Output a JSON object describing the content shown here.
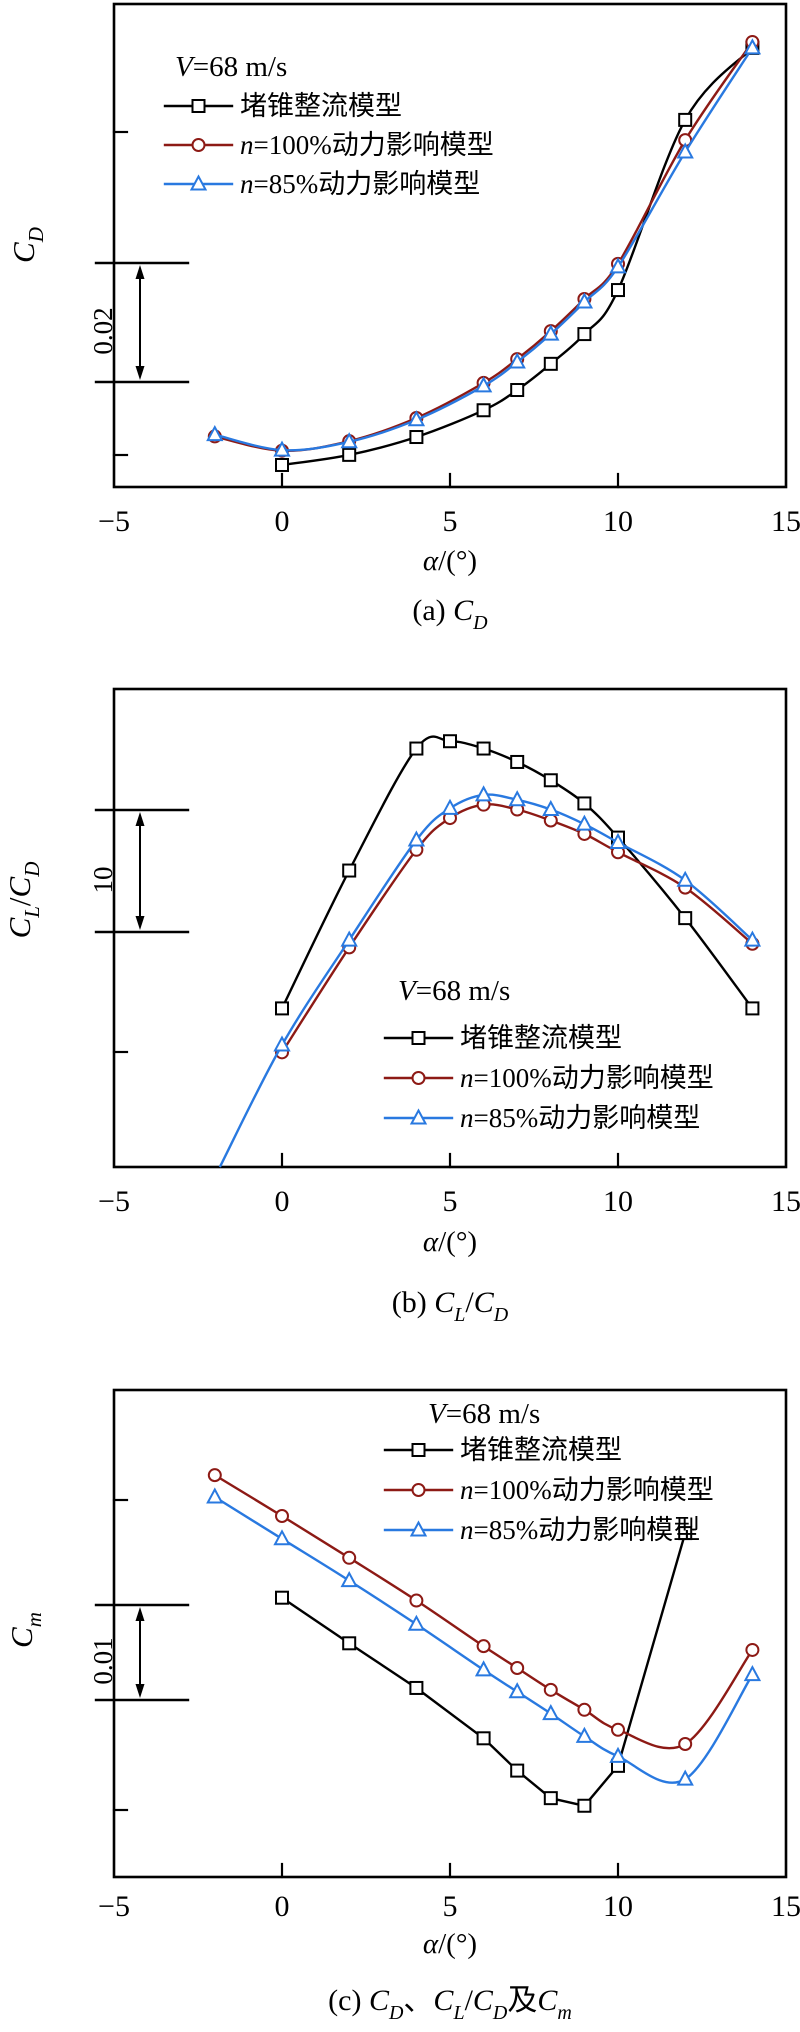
{
  "figure": {
    "background": "#ffffff",
    "colors": {
      "black": "#000000",
      "dark_red": "#8d1a15",
      "blue": "#2979e0"
    },
    "velocity_label": "V=68 m/s",
    "series_names": [
      "堵锥整流模型",
      "n=100%动力影响模型",
      "n=85%动力影响模型"
    ]
  },
  "chart_data": [
    {
      "id": "a",
      "type": "line",
      "caption": "(a) C_D",
      "caption_runs": [
        {
          "t": "(a) "
        },
        {
          "t": "C",
          "i": 1
        },
        {
          "t": "D",
          "i": 1,
          "sub": 1
        }
      ],
      "xlabel": "α/(°)",
      "xlabel_runs": [
        {
          "t": "α",
          "i": 1
        },
        {
          "t": "/(°)"
        }
      ],
      "ylabel": "C_D",
      "ylabel_runs": [
        {
          "t": "C",
          "i": 1
        },
        {
          "t": "D",
          "i": 1,
          "sub": 1
        }
      ],
      "x_range": [
        -5,
        15
      ],
      "x_ticks": [
        0,
        5,
        10
      ],
      "x_tick_labels": [
        "−5",
        "0",
        "5",
        "10",
        "15"
      ],
      "x_tick_label_values": [
        -5,
        0,
        5,
        10,
        15
      ],
      "y_axis_note": "no numeric y labels; scale bar shows 0.02 per division (relative C_D)",
      "scale_bar_label": "0.02",
      "scale_bar_value": 0.02,
      "legend_title": "V=68 m/s",
      "legend_title_runs": [
        {
          "t": "V",
          "i": 1
        },
        {
          "t": "=68 m/s"
        }
      ],
      "series": [
        {
          "name": "堵锥整流模型",
          "label_runs": [
            {
              "t": "堵锥整流模型"
            }
          ],
          "color_key": "black",
          "marker": "square",
          "straight": false,
          "alpha": [
            0,
            2,
            4,
            6,
            7,
            8,
            9,
            10,
            12,
            14
          ],
          "value": [
            0.0037,
            0.0054,
            0.0084,
            0.0129,
            0.0163,
            0.0207,
            0.0257,
            0.0331,
            0.0617,
            0.0738
          ]
        },
        {
          "name": "n=100%动力影响模型",
          "label_runs": [
            {
              "t": "n",
              "i": 1
            },
            {
              "t": "=100%动力影响模型"
            }
          ],
          "color_key": "dark_red",
          "marker": "circle",
          "straight": false,
          "alpha": [
            -2,
            0,
            2,
            4,
            6,
            7,
            8,
            9,
            10,
            12,
            14
          ],
          "value": [
            0.0085,
            0.0061,
            0.0077,
            0.0116,
            0.0175,
            0.0215,
            0.0262,
            0.0316,
            0.0375,
            0.0583,
            0.0748
          ]
        },
        {
          "name": "n=85%动力影响模型",
          "label_runs": [
            {
              "t": "n",
              "i": 1
            },
            {
              "t": "=85%动力影响模型"
            }
          ],
          "color_key": "blue",
          "marker": "triangle",
          "straight": false,
          "alpha": [
            -2,
            0,
            2,
            4,
            6,
            7,
            8,
            9,
            10,
            12,
            14
          ],
          "value": [
            0.0088,
            0.0062,
            0.0076,
            0.0113,
            0.017,
            0.021,
            0.0257,
            0.0311,
            0.037,
            0.0563,
            0.0738
          ]
        }
      ]
    },
    {
      "id": "b",
      "type": "line",
      "caption": "(b) C_L/C_D",
      "caption_runs": [
        {
          "t": "(b) "
        },
        {
          "t": "C",
          "i": 1
        },
        {
          "t": "L",
          "i": 1,
          "sub": 1
        },
        {
          "t": "/"
        },
        {
          "t": "C",
          "i": 1
        },
        {
          "t": "D",
          "i": 1,
          "sub": 1
        }
      ],
      "xlabel": "α/(°)",
      "xlabel_runs": [
        {
          "t": "α",
          "i": 1
        },
        {
          "t": "/(°)"
        }
      ],
      "ylabel": "C_L/C_D",
      "ylabel_runs": [
        {
          "t": "C",
          "i": 1
        },
        {
          "t": "L",
          "i": 1,
          "sub": 1
        },
        {
          "t": "/"
        },
        {
          "t": "C",
          "i": 1
        },
        {
          "t": "D",
          "i": 1,
          "sub": 1
        }
      ],
      "x_range": [
        -5,
        15
      ],
      "x_ticks": [
        0,
        5,
        10
      ],
      "x_tick_labels": [
        "−5",
        "0",
        "5",
        "10",
        "15"
      ],
      "x_tick_label_values": [
        -5,
        0,
        5,
        10,
        15
      ],
      "y_axis_note": "no numeric y labels; scale bar shows 10 per division (relative C_L/C_D)",
      "scale_bar_label": "10",
      "scale_bar_value": 10,
      "legend_title": "V=68 m/s",
      "legend_title_runs": [
        {
          "t": "V",
          "i": 1
        },
        {
          "t": "=68 m/s"
        }
      ],
      "series": [
        {
          "name": "堵锥整流模型",
          "label_runs": [
            {
              "t": "堵锥整流模型"
            }
          ],
          "color_key": "black",
          "marker": "square",
          "straight": false,
          "alpha": [
            0,
            2,
            4,
            5,
            6,
            7,
            8,
            9,
            10,
            12,
            14
          ],
          "value": [
            13.0,
            24.3,
            34.3,
            34.9,
            34.3,
            33.2,
            31.7,
            29.8,
            27.0,
            20.4,
            13.0
          ]
        },
        {
          "name": "n=100%动力影响模型",
          "label_runs": [
            {
              "t": "n",
              "i": 1
            },
            {
              "t": "=100%动力影响模型"
            }
          ],
          "color_key": "dark_red",
          "marker": "circle",
          "straight": false,
          "alpha": [
            0,
            2,
            4,
            5,
            6,
            7,
            8,
            9,
            10,
            12,
            14
          ],
          "value": [
            9.4,
            18.0,
            26.0,
            28.6,
            29.7,
            29.3,
            28.4,
            27.3,
            25.8,
            22.9,
            18.3
          ]
        },
        {
          "name": "n=85%动力影响模型",
          "label_runs": [
            {
              "t": "n",
              "i": 1
            },
            {
              "t": "=85%动力影响模型"
            }
          ],
          "color_key": "blue",
          "marker": "triangle",
          "straight": false,
          "alpha": [
            0,
            2,
            4,
            5,
            6,
            7,
            8,
            9,
            10,
            12,
            14
          ],
          "value": [
            10.0,
            18.6,
            26.8,
            29.4,
            30.5,
            30.1,
            29.3,
            28.1,
            26.6,
            23.5,
            18.6
          ],
          "line_extension": [
            {
              "alpha": -1.85,
              "value": 0
            }
          ]
        }
      ]
    },
    {
      "id": "c",
      "type": "line",
      "caption": "(c) C_D、C_L/C_D及C_m",
      "caption_runs": [
        {
          "t": "(c) "
        },
        {
          "t": "C",
          "i": 1
        },
        {
          "t": "D",
          "i": 1,
          "sub": 1
        },
        {
          "t": "、"
        },
        {
          "t": "C",
          "i": 1
        },
        {
          "t": "L",
          "i": 1,
          "sub": 1
        },
        {
          "t": "/"
        },
        {
          "t": "C",
          "i": 1
        },
        {
          "t": "D",
          "i": 1,
          "sub": 1
        },
        {
          "t": "及"
        },
        {
          "t": "C",
          "i": 1
        },
        {
          "t": "m",
          "i": 1,
          "sub": 1
        }
      ],
      "xlabel": "α/(°)",
      "xlabel_runs": [
        {
          "t": "α",
          "i": 1
        },
        {
          "t": "/(°)"
        }
      ],
      "ylabel": "C_m",
      "ylabel_runs": [
        {
          "t": "C",
          "i": 1
        },
        {
          "t": "m",
          "i": 1,
          "sub": 1
        }
      ],
      "x_range": [
        -5,
        15
      ],
      "x_ticks": [
        0,
        5,
        10
      ],
      "x_tick_labels": [
        "−5",
        "0",
        "5",
        "10",
        "15"
      ],
      "x_tick_label_values": [
        -5,
        0,
        5,
        10,
        15
      ],
      "y_axis_note": "no numeric y labels; scale bar shows 0.01 per division (relative C_m)",
      "scale_bar_label": "0.01",
      "scale_bar_value": 0.01,
      "legend_title": "V=68 m/s",
      "legend_title_runs": [
        {
          "t": "V",
          "i": 1
        },
        {
          "t": "=68 m/s"
        }
      ],
      "series": [
        {
          "name": "堵锥整流模型",
          "label_runs": [
            {
              "t": "堵锥整流模型"
            }
          ],
          "color_key": "black",
          "marker": "square",
          "straight": true,
          "alpha": [
            0,
            2,
            4,
            6,
            7,
            8,
            9,
            10,
            12
          ],
          "value": [
            0.0294,
            0.0246,
            0.0199,
            0.0146,
            0.0112,
            0.0083,
            0.0075,
            0.0117,
            0.0362
          ]
        },
        {
          "name": "n=100%动力影响模型",
          "label_runs": [
            {
              "t": "n",
              "i": 1
            },
            {
              "t": "=100%动力影响模型"
            }
          ],
          "color_key": "dark_red",
          "marker": "circle",
          "straight": false,
          "alpha": [
            -2,
            0,
            2,
            4,
            6,
            7,
            8,
            9,
            10,
            12,
            14
          ],
          "value": [
            0.0423,
            0.038,
            0.0336,
            0.0291,
            0.0243,
            0.022,
            0.0197,
            0.0176,
            0.0155,
            0.014,
            0.0239
          ]
        },
        {
          "name": "n=85%动力影响模型",
          "label_runs": [
            {
              "t": "n",
              "i": 1
            },
            {
              "t": "=85%动力影响模型"
            }
          ],
          "color_key": "blue",
          "marker": "triangle",
          "straight": false,
          "alpha": [
            -2,
            0,
            2,
            4,
            6,
            7,
            8,
            9,
            10,
            12,
            14
          ],
          "value": [
            0.04,
            0.0356,
            0.0312,
            0.0266,
            0.0218,
            0.0195,
            0.0172,
            0.0148,
            0.0127,
            0.0103,
            0.0213
          ]
        }
      ]
    }
  ]
}
